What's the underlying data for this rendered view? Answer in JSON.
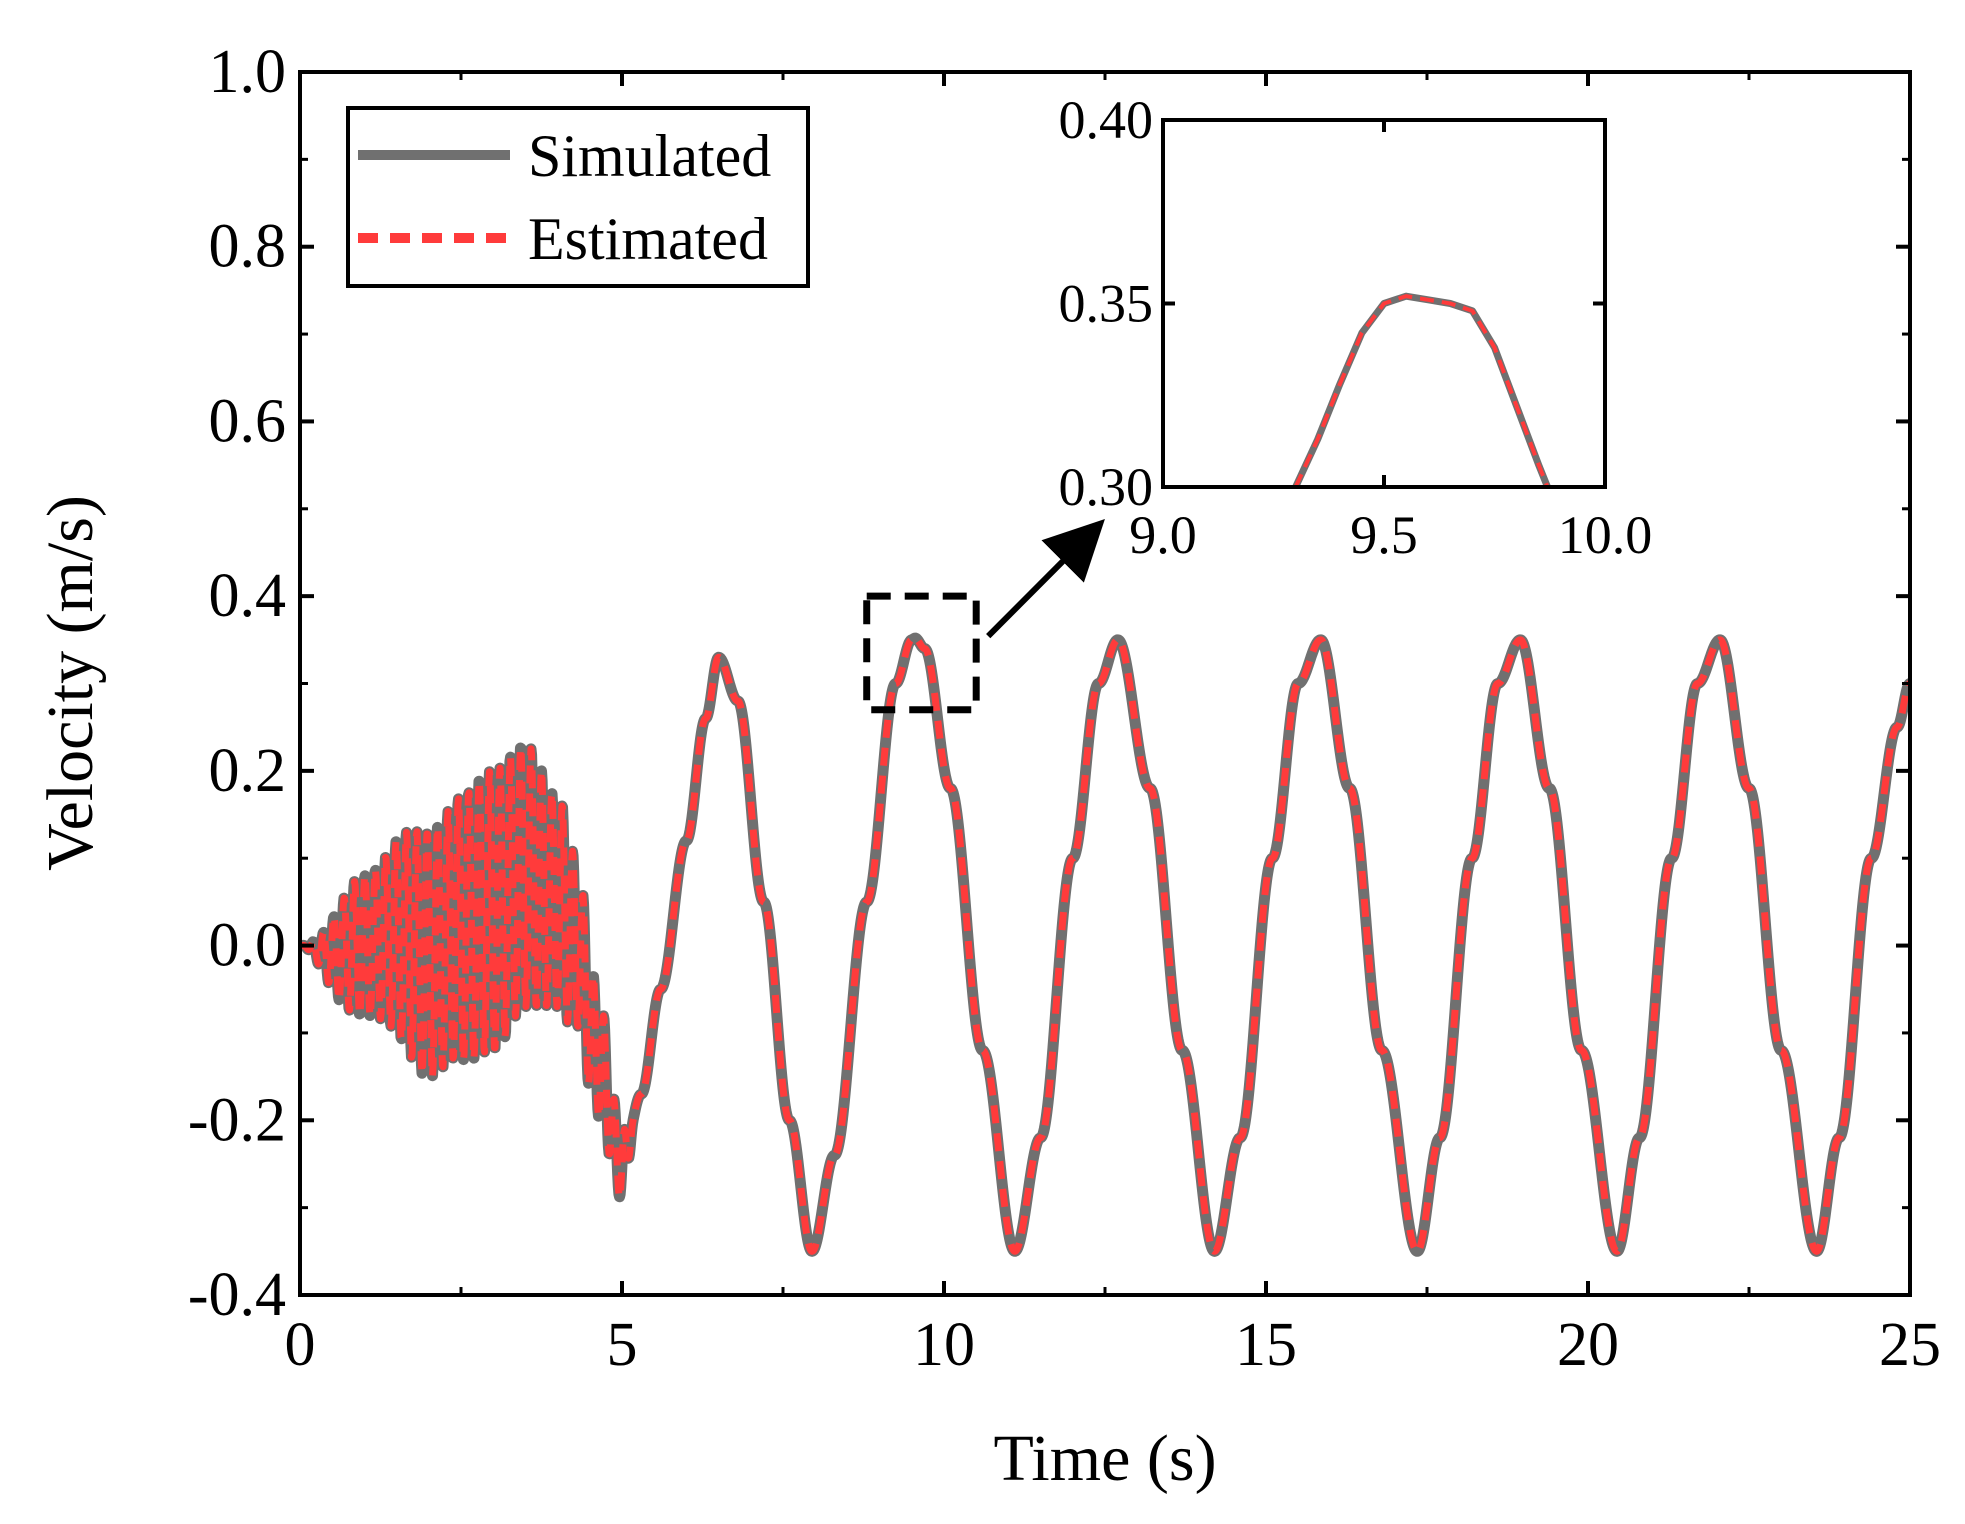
{
  "chart_data": [
    {
      "type": "line",
      "panel": "main",
      "xlabel": "Time (s)",
      "ylabel": "Velocity (m/s)",
      "xlim": [
        0,
        25
      ],
      "ylim": [
        -0.4,
        1.0
      ],
      "x_ticks": [
        "0",
        "5",
        "10",
        "15",
        "20",
        "25"
      ],
      "y_ticks": [
        "-0.4",
        "-0.2",
        "0.0",
        "0.2",
        "0.4",
        "0.6",
        "0.8",
        "1.0"
      ],
      "x_tick_values": [
        0,
        5,
        10,
        15,
        20,
        25
      ],
      "y_tick_values": [
        -0.4,
        -0.2,
        0.0,
        0.2,
        0.4,
        0.6,
        0.8,
        1.0
      ],
      "legend_position": "top-left",
      "series": [
        {
          "name": "Simulated",
          "color": "#707070",
          "style": "solid",
          "x": [
            0,
            0.5,
            1,
            1.5,
            2,
            2.5,
            3,
            3.5,
            4,
            4.3,
            4.6,
            5,
            5.3,
            5.6,
            6,
            6.3,
            6.5,
            6.8,
            7.2,
            7.6,
            7.95,
            8.3,
            8.8,
            9.25,
            9.5,
            9.55,
            9.7,
            10.1,
            10.6,
            11.1,
            11.5,
            12.0,
            12.4,
            12.7,
            13.2,
            13.7,
            14.2,
            14.6,
            15.1,
            15.5,
            15.85,
            16.3,
            16.8,
            17.35,
            17.7,
            18.2,
            18.6,
            18.95,
            19.4,
            19.9,
            20.45,
            20.8,
            21.3,
            21.7,
            22.05,
            22.5,
            23.0,
            23.55,
            23.9,
            24.4,
            24.8,
            25
          ],
          "y": [
            0,
            -0.01,
            0.0,
            0.01,
            -0.01,
            0.02,
            0.04,
            0.08,
            0.05,
            0.0,
            -0.12,
            -0.25,
            -0.17,
            -0.05,
            0.12,
            0.26,
            0.33,
            0.28,
            0.05,
            -0.2,
            -0.35,
            -0.24,
            0.05,
            0.3,
            0.35,
            0.352,
            0.34,
            0.18,
            -0.12,
            -0.35,
            -0.22,
            0.1,
            0.3,
            0.35,
            0.18,
            -0.12,
            -0.35,
            -0.22,
            0.1,
            0.3,
            0.35,
            0.18,
            -0.12,
            -0.35,
            -0.22,
            0.1,
            0.3,
            0.35,
            0.18,
            -0.12,
            -0.35,
            -0.22,
            0.1,
            0.3,
            0.35,
            0.18,
            -0.12,
            -0.35,
            -0.22,
            0.1,
            0.25,
            0.3
          ]
        },
        {
          "name": "Estimated",
          "color": "#ff3b3b",
          "style": "dashed",
          "x": [
            0,
            0.5,
            1,
            1.5,
            2,
            2.5,
            3,
            3.5,
            4,
            4.3,
            4.6,
            5,
            5.3,
            5.6,
            6,
            6.3,
            6.5,
            6.8,
            7.2,
            7.6,
            7.95,
            8.3,
            8.8,
            9.25,
            9.5,
            9.55,
            9.7,
            10.1,
            10.6,
            11.1,
            11.5,
            12.0,
            12.4,
            12.7,
            13.2,
            13.7,
            14.2,
            14.6,
            15.1,
            15.5,
            15.85,
            16.3,
            16.8,
            17.35,
            17.7,
            18.2,
            18.6,
            18.95,
            19.4,
            19.9,
            20.45,
            20.8,
            21.3,
            21.7,
            22.05,
            22.5,
            23.0,
            23.55,
            23.9,
            24.4,
            24.8,
            25
          ],
          "y": [
            0,
            -0.01,
            0.0,
            0.01,
            -0.01,
            0.02,
            0.04,
            0.08,
            0.05,
            0.0,
            -0.12,
            -0.25,
            -0.17,
            -0.05,
            0.12,
            0.26,
            0.33,
            0.28,
            0.05,
            -0.2,
            -0.35,
            -0.24,
            0.05,
            0.3,
            0.35,
            0.352,
            0.34,
            0.18,
            -0.12,
            -0.35,
            -0.22,
            0.1,
            0.3,
            0.35,
            0.18,
            -0.12,
            -0.35,
            -0.22,
            0.1,
            0.3,
            0.35,
            0.18,
            -0.12,
            -0.35,
            -0.22,
            0.1,
            0.3,
            0.35,
            0.18,
            -0.12,
            -0.35,
            -0.22,
            0.1,
            0.3,
            0.35,
            0.18,
            -0.12,
            -0.35,
            -0.22,
            0.1,
            0.25,
            0.3
          ]
        }
      ],
      "oscillation_envelope": {
        "note_values": "high-frequency oscillation amplitude (m/s) over 0-5.2 s, superimposed on the series above",
        "x": [
          0,
          1,
          2,
          3,
          3.5,
          4,
          4.5,
          5,
          5.2
        ],
        "amplitude": [
          0.0,
          0.08,
          0.14,
          0.16,
          0.15,
          0.12,
          0.08,
          0.04,
          0.0
        ]
      },
      "zoom_box": {
        "x_range": [
          8.8,
          10.5
        ],
        "y_range": [
          0.27,
          0.4
        ]
      }
    },
    {
      "type": "line",
      "panel": "inset",
      "xlim": [
        9.0,
        10.0
      ],
      "ylim": [
        0.3,
        0.4
      ],
      "x_ticks": [
        "9.0",
        "9.5",
        "10.0"
      ],
      "y_ticks": [
        "0.30",
        "0.35",
        "0.40"
      ],
      "x_tick_values": [
        9.0,
        9.5,
        10.0
      ],
      "y_tick_values": [
        0.3,
        0.35,
        0.4
      ],
      "series": [
        {
          "name": "Simulated",
          "color": "#707070",
          "x": [
            9.3,
            9.35,
            9.4,
            9.45,
            9.5,
            9.55,
            9.6,
            9.65,
            9.7,
            9.75,
            9.8,
            9.85,
            9.87
          ],
          "y": [
            0.3,
            0.313,
            0.328,
            0.342,
            0.35,
            0.352,
            0.351,
            0.35,
            0.348,
            0.338,
            0.322,
            0.306,
            0.3
          ]
        },
        {
          "name": "Estimated",
          "color": "#ff3b3b",
          "x": [
            9.3,
            9.35,
            9.4,
            9.45,
            9.5,
            9.55,
            9.6,
            9.65,
            9.7,
            9.75,
            9.8,
            9.85,
            9.87
          ],
          "y": [
            0.3,
            0.313,
            0.328,
            0.342,
            0.35,
            0.352,
            0.351,
            0.35,
            0.348,
            0.338,
            0.322,
            0.306,
            0.3
          ]
        }
      ]
    }
  ],
  "legend": {
    "items": [
      {
        "label": "Simulated",
        "color": "#707070",
        "style": "solid"
      },
      {
        "label": "Estimated",
        "color": "#ff3b3b",
        "style": "dashed"
      }
    ]
  }
}
